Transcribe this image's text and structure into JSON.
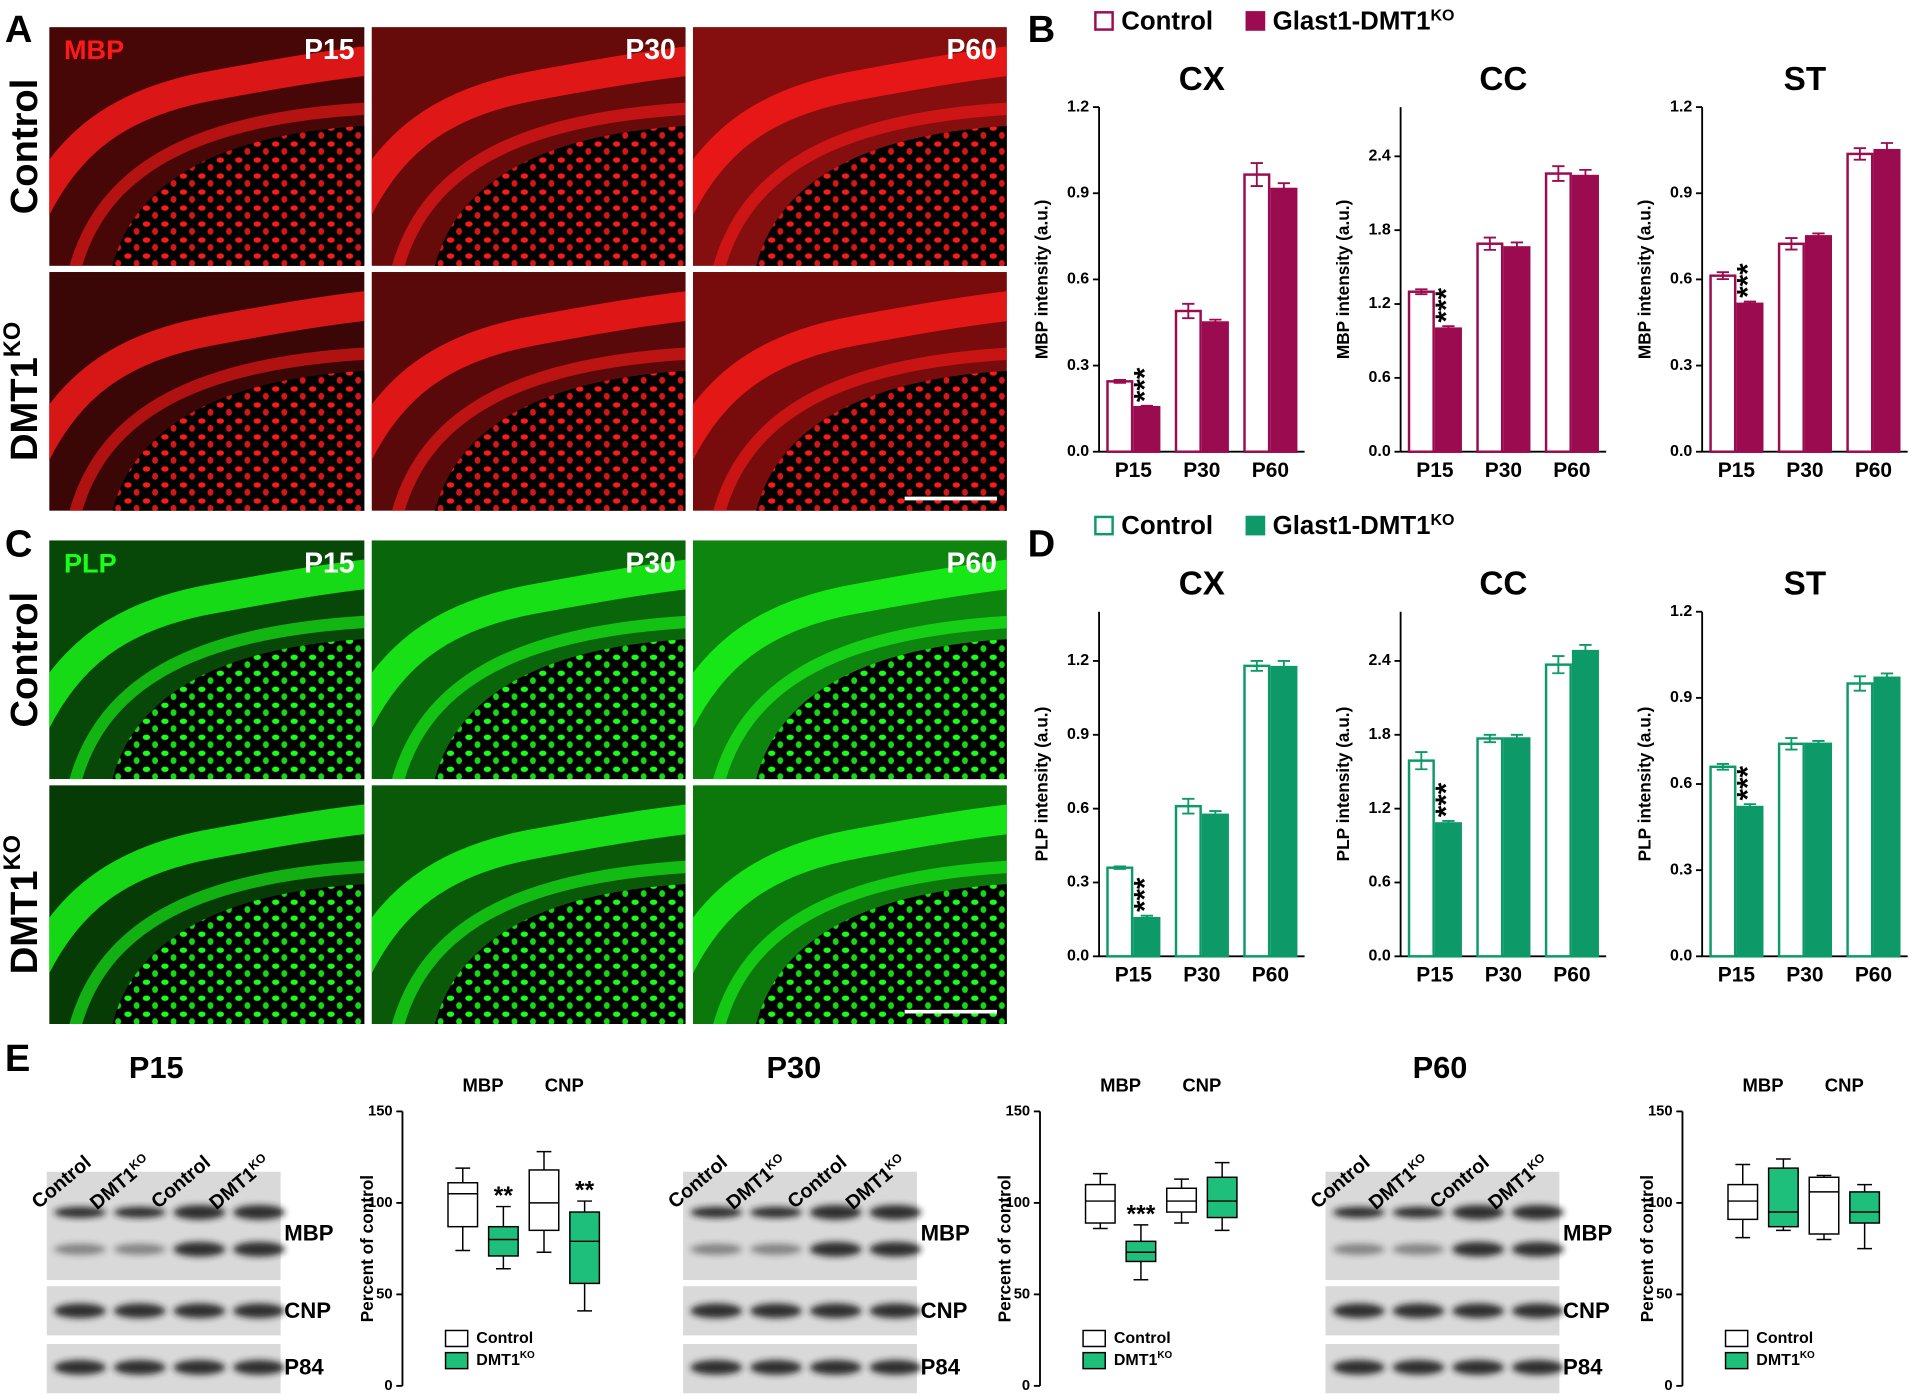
{
  "panel_labels": [
    "A",
    "B",
    "C",
    "D",
    "E"
  ],
  "micrographs": [
    {
      "stain": "MBP",
      "color": "#ff1a1a",
      "ages": [
        "P15",
        "P30",
        "P60"
      ],
      "rows": [
        {
          "name": "Control"
        },
        {
          "name": "DMT1",
          "sup": "KO"
        }
      ]
    },
    {
      "stain": "PLP",
      "color": "#1aff1a",
      "ages": [
        "P15",
        "P30",
        "P60"
      ],
      "rows": [
        {
          "name": "Control"
        },
        {
          "name": "DMT1",
          "sup": "KO"
        }
      ]
    }
  ],
  "blots": [
    {
      "title": "P15",
      "lanes": [
        {
          "name": "Control"
        },
        {
          "name": "DMT1",
          "sup": "KO"
        },
        {
          "name": "Control"
        },
        {
          "name": "DMT1",
          "sup": "KO"
        }
      ],
      "bands": [
        "MBP",
        "CNP",
        "P84"
      ]
    },
    {
      "title": "P30",
      "lanes": [
        {
          "name": "Control"
        },
        {
          "name": "DMT1",
          "sup": "KO"
        },
        {
          "name": "Control"
        },
        {
          "name": "DMT1",
          "sup": "KO"
        }
      ],
      "bands": [
        "MBP",
        "CNP",
        "P84"
      ]
    },
    {
      "title": "P60",
      "lanes": [
        {
          "name": "Control"
        },
        {
          "name": "DMT1",
          "sup": "KO"
        },
        {
          "name": "Control"
        },
        {
          "name": "DMT1",
          "sup": "KO"
        }
      ],
      "bands": [
        "MBP",
        "CNP",
        "P84"
      ]
    }
  ],
  "chart_data": [
    {
      "type": "bar",
      "ylabel": "MBP intensity (a.u.)",
      "categories": [
        "P15",
        "P30",
        "P60"
      ],
      "series": [
        {
          "name": "Control",
          "color": "#9b0b4f",
          "fill": "#ffffff"
        },
        {
          "name": "Glast1-DMT1",
          "name_sup": "KO",
          "color": "#9b0b4f",
          "fill": "#9b0b4f"
        }
      ],
      "subplots": [
        {
          "title": "CX",
          "ylim": [
            0,
            1.2
          ],
          "yticks": [
            {
              "value": 0,
              "label": "0.0"
            },
            0.3,
            0.6,
            0.9,
            1.2
          ],
          "values": [
            [
              0.245,
              0.49,
              0.965
            ],
            [
              0.155,
              0.45,
              0.915
            ]
          ],
          "errors": [
            [
              0.005,
              0.025,
              0.04
            ],
            [
              0.005,
              0.01,
              0.02
            ]
          ],
          "annotations": [
            {
              "series": 1,
              "index": 0,
              "text": "***"
            }
          ]
        },
        {
          "title": "CC",
          "ylim": [
            0,
            2.8
          ],
          "yticks": [
            {
              "value": 0,
              "label": "0.0"
            },
            0.6,
            1.2,
            1.8,
            2.4
          ],
          "values": [
            [
              1.3,
              1.69,
              2.26
            ],
            [
              1.0,
              1.66,
              2.24
            ]
          ],
          "errors": [
            [
              0.02,
              0.05,
              0.06
            ],
            [
              0.02,
              0.04,
              0.05
            ]
          ],
          "annotations": [
            {
              "series": 1,
              "index": 0,
              "text": "***"
            }
          ]
        },
        {
          "title": "ST",
          "ylim": [
            0,
            1.2
          ],
          "yticks": [
            {
              "value": 0,
              "label": "0.0"
            },
            0.3,
            0.6,
            0.9,
            1.2
          ],
          "values": [
            [
              0.613,
              0.724,
              1.037
            ],
            [
              0.515,
              0.75,
              1.05
            ]
          ],
          "errors": [
            [
              0.012,
              0.02,
              0.02
            ],
            [
              0.008,
              0.01,
              0.025
            ]
          ],
          "annotations": [
            {
              "series": 1,
              "index": 0,
              "text": "***"
            }
          ]
        }
      ]
    },
    {
      "type": "bar",
      "ylabel": "PLP intensity (a.u.)",
      "categories": [
        "P15",
        "P30",
        "P60"
      ],
      "series": [
        {
          "name": "Control",
          "color": "#0d9a68",
          "fill": "#ffffff"
        },
        {
          "name": "Glast1-DMT1",
          "name_sup": "KO",
          "color": "#0d9a68",
          "fill": "#0d9a68"
        }
      ],
      "subplots": [
        {
          "title": "CX",
          "ylim": [
            0,
            1.4
          ],
          "yticks": [
            {
              "value": 0,
              "label": "0.0"
            },
            0.3,
            0.6,
            0.9,
            1.2
          ],
          "values": [
            [
              0.36,
              0.61,
              1.18
            ],
            [
              0.155,
              0.575,
              1.175
            ]
          ],
          "errors": [
            [
              0.005,
              0.03,
              0.02
            ],
            [
              0.01,
              0.015,
              0.025
            ]
          ],
          "annotations": [
            {
              "series": 1,
              "index": 0,
              "text": "***"
            }
          ]
        },
        {
          "title": "CC",
          "ylim": [
            0,
            2.8
          ],
          "yticks": [
            {
              "value": 0,
              "label": "0.0"
            },
            0.6,
            1.2,
            1.8,
            2.4
          ],
          "values": [
            [
              1.59,
              1.77,
              2.37
            ],
            [
              1.08,
              1.77,
              2.48
            ]
          ],
          "errors": [
            [
              0.07,
              0.03,
              0.07
            ],
            [
              0.02,
              0.03,
              0.05
            ]
          ],
          "annotations": [
            {
              "series": 1,
              "index": 0,
              "text": "***"
            }
          ]
        },
        {
          "title": "ST",
          "ylim": [
            0,
            1.2
          ],
          "yticks": [
            {
              "value": 0,
              "label": "0.0"
            },
            0.3,
            0.6,
            0.9,
            1.2
          ],
          "values": [
            [
              0.66,
              0.74,
              0.95
            ],
            [
              0.52,
              0.74,
              0.97
            ]
          ],
          "errors": [
            [
              0.01,
              0.02,
              0.025
            ],
            [
              0.01,
              0.01,
              0.015
            ]
          ],
          "annotations": [
            {
              "series": 1,
              "index": 0,
              "text": "***"
            }
          ]
        }
      ]
    },
    {
      "type": "box",
      "ylabel": "Percent of control",
      "groups": [
        "MBP",
        "CNP"
      ],
      "ylim": [
        0,
        150
      ],
      "yticks": [
        0,
        50,
        100,
        150
      ],
      "series": [
        {
          "name": "Control",
          "color": "#ffffff"
        },
        {
          "name": "DMT1",
          "name_sup": "KO",
          "color": "#1dbf7a"
        }
      ],
      "subplots": [
        {
          "values": [
            [
              {
                "min": 74,
                "q1": 87,
                "median": 105,
                "q3": 111,
                "max": 119
              },
              {
                "min": 73,
                "q1": 85,
                "median": 100,
                "q3": 118,
                "max": 128
              }
            ],
            [
              {
                "min": 64,
                "q1": 71,
                "median": 80,
                "q3": 87,
                "max": 98
              },
              {
                "min": 41,
                "q1": 56,
                "median": 79,
                "q3": 95,
                "max": 101
              }
            ]
          ],
          "annotations": [
            {
              "series": 1,
              "group": 0,
              "text": "**"
            },
            {
              "series": 1,
              "group": 1,
              "text": "**"
            }
          ]
        },
        {
          "values": [
            [
              {
                "min": 86,
                "q1": 89,
                "median": 101,
                "q3": 110,
                "max": 116
              },
              {
                "min": 89,
                "q1": 95,
                "median": 101,
                "q3": 108,
                "max": 113
              }
            ],
            [
              {
                "min": 58,
                "q1": 68,
                "median": 73,
                "q3": 79,
                "max": 88
              },
              {
                "min": 85,
                "q1": 92,
                "median": 101,
                "q3": 114,
                "max": 122
              }
            ]
          ],
          "annotations": [
            {
              "series": 1,
              "group": 0,
              "text": "***"
            }
          ]
        },
        {
          "values": [
            [
              {
                "min": 81,
                "q1": 91,
                "median": 101,
                "q3": 110,
                "max": 121
              },
              {
                "min": 80,
                "q1": 83,
                "median": 106,
                "q3": 114,
                "max": 115
              }
            ],
            [
              {
                "min": 85,
                "q1": 87,
                "median": 95,
                "q3": 119,
                "max": 124
              },
              {
                "min": 75,
                "q1": 89,
                "median": 95,
                "q3": 106,
                "max": 110
              }
            ]
          ],
          "annotations": []
        }
      ]
    }
  ]
}
